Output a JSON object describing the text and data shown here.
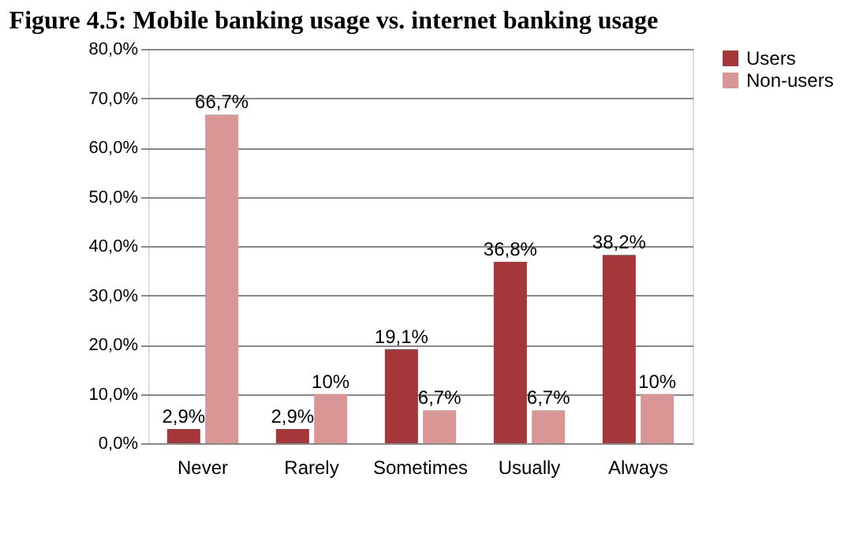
{
  "chart_data": {
    "type": "bar",
    "title": "Figure 4.5: Mobile banking usage vs. internet banking usage",
    "categories": [
      "Never",
      "Rarely",
      "Sometimes",
      "Usually",
      "Always"
    ],
    "series": [
      {
        "name": "Users",
        "color": "#a5373a",
        "values": [
          2.9,
          2.9,
          19.1,
          36.8,
          38.2
        ],
        "value_labels": [
          "2,9%",
          "2,9%",
          "19,1%",
          "36,8%",
          "38,2%"
        ]
      },
      {
        "name": "Non-users",
        "color": "#d99694",
        "values": [
          66.7,
          10,
          6.7,
          6.7,
          10
        ],
        "value_labels": [
          "66,7%",
          "10%",
          "6,7%",
          "6,7%",
          "10%"
        ]
      }
    ],
    "ylim": [
      0,
      80
    ],
    "yticks": [
      {
        "value": 0,
        "label": "0,0%"
      },
      {
        "value": 10,
        "label": "10,0%"
      },
      {
        "value": 20,
        "label": "20,0%"
      },
      {
        "value": 30,
        "label": "30,0%"
      },
      {
        "value": 40,
        "label": "40,0%"
      },
      {
        "value": 50,
        "label": "50,0%"
      },
      {
        "value": 60,
        "label": "60,0%"
      },
      {
        "value": 70,
        "label": "70,0%"
      },
      {
        "value": 80,
        "label": "80,0%"
      }
    ],
    "grid": "y",
    "legend": "right"
  }
}
